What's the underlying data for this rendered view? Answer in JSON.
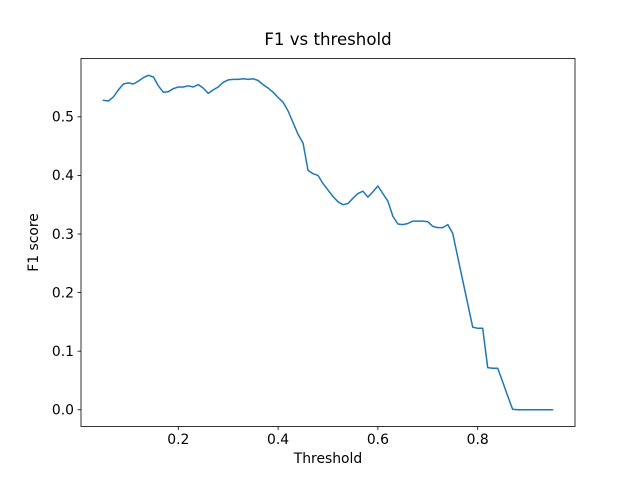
{
  "chart_data": {
    "type": "line",
    "title": "F1 vs threshold",
    "xlabel": "Threshold",
    "ylabel": "F1 score",
    "grid": false,
    "legend": "none",
    "xlim": [
      0.005,
      0.995
    ],
    "ylim": [
      -0.0286,
      0.5996
    ],
    "xticks": [
      0.2,
      0.4,
      0.6,
      0.8
    ],
    "xtick_labels": [
      "0.2",
      "0.4",
      "0.6",
      "0.8"
    ],
    "yticks": [
      0.0,
      0.1,
      0.2,
      0.3,
      0.4,
      0.5
    ],
    "ytick_labels": [
      "0.0",
      "0.1",
      "0.2",
      "0.3",
      "0.4",
      "0.5"
    ],
    "series": [
      {
        "name": "F1",
        "color": "#1f77b4",
        "line_width": 1.5,
        "x": [
          0.05,
          0.06,
          0.07,
          0.08,
          0.09,
          0.1,
          0.11,
          0.12,
          0.13,
          0.14,
          0.15,
          0.16,
          0.17,
          0.18,
          0.19,
          0.2,
          0.21,
          0.22,
          0.23,
          0.24,
          0.25,
          0.26,
          0.27,
          0.28,
          0.29,
          0.3,
          0.31,
          0.32,
          0.33,
          0.34,
          0.35,
          0.36,
          0.37,
          0.38,
          0.39,
          0.4,
          0.41,
          0.42,
          0.43,
          0.44,
          0.45,
          0.46,
          0.47,
          0.48,
          0.49,
          0.5,
          0.51,
          0.52,
          0.53,
          0.54,
          0.55,
          0.56,
          0.57,
          0.58,
          0.59,
          0.6,
          0.61,
          0.62,
          0.63,
          0.64,
          0.65,
          0.66,
          0.67,
          0.68,
          0.69,
          0.7,
          0.71,
          0.72,
          0.73,
          0.74,
          0.75,
          0.76,
          0.77,
          0.78,
          0.79,
          0.8,
          0.81,
          0.82,
          0.83,
          0.84,
          0.85,
          0.86,
          0.87,
          0.88,
          0.89,
          0.9,
          0.91,
          0.92,
          0.93,
          0.94,
          0.95
        ],
        "y": [
          0.528,
          0.527,
          0.534,
          0.546,
          0.556,
          0.558,
          0.556,
          0.561,
          0.567,
          0.571,
          0.568,
          0.553,
          0.542,
          0.543,
          0.548,
          0.551,
          0.551,
          0.553,
          0.551,
          0.555,
          0.549,
          0.54,
          0.546,
          0.551,
          0.559,
          0.563,
          0.564,
          0.564,
          0.565,
          0.564,
          0.565,
          0.562,
          0.555,
          0.549,
          0.542,
          0.533,
          0.525,
          0.51,
          0.49,
          0.47,
          0.455,
          0.409,
          0.403,
          0.4,
          0.386,
          0.375,
          0.364,
          0.355,
          0.35,
          0.352,
          0.361,
          0.369,
          0.373,
          0.363,
          0.372,
          0.382,
          0.369,
          0.356,
          0.33,
          0.317,
          0.316,
          0.318,
          0.322,
          0.322,
          0.322,
          0.321,
          0.313,
          0.311,
          0.311,
          0.316,
          0.301,
          0.261,
          0.221,
          0.181,
          0.141,
          0.139,
          0.139,
          0.072,
          0.071,
          0.071,
          0.048,
          0.024,
          0.001,
          0.0,
          0.0,
          0.0,
          0.0,
          0.0,
          0.0,
          0.0,
          0.0
        ]
      }
    ],
    "colors": {
      "background": "#ffffff",
      "spine": "#000000",
      "line": "#1f77b4",
      "text": "#000000"
    }
  }
}
